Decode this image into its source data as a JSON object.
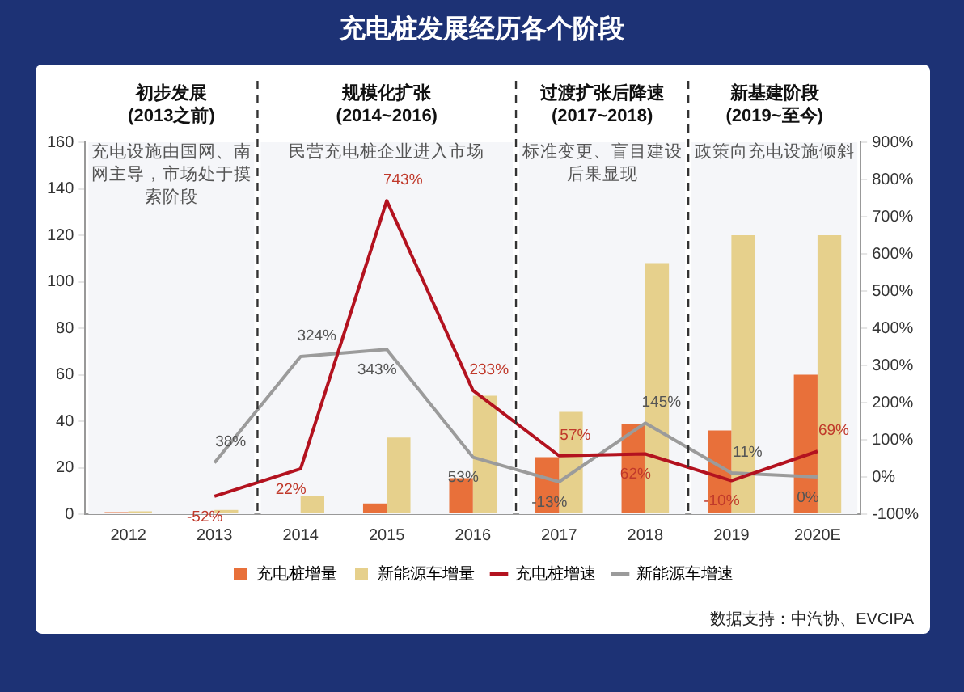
{
  "chart_data": {
    "type": "bar",
    "title": "充电桩发展经历各个阶段",
    "categories": [
      "2012",
      "2013",
      "2014",
      "2015",
      "2016",
      "2017",
      "2018",
      "2019",
      "2020E"
    ],
    "series": [
      {
        "name": "充电桩增量",
        "color": "#e8703a",
        "values": [
          0.9,
          null,
          null,
          4.6,
          15.5,
          24.5,
          39,
          36,
          60
        ]
      },
      {
        "name": "新能源车增量",
        "color": "#e6d08c",
        "values": [
          1.2,
          1.8,
          7.8,
          33,
          51,
          44,
          108,
          120,
          120
        ]
      },
      {
        "name": "充电桩增速",
        "type": "line",
        "axis": "y2",
        "color": "#b3121f",
        "values": [
          null,
          -52,
          22,
          743,
          233,
          57,
          62,
          -10,
          69
        ],
        "value_labels": [
          null,
          "-52%",
          "22%",
          "743%",
          "233%",
          "57%",
          "62%",
          "-10%",
          "69%"
        ]
      },
      {
        "name": "新能源车增速",
        "type": "line",
        "axis": "y2",
        "color": "#9b9b9b",
        "values": [
          null,
          38,
          324,
          343,
          53,
          -13,
          145,
          11,
          0
        ],
        "value_labels": [
          null,
          "38%",
          "324%",
          "343%",
          "53%",
          "-13%",
          "145%",
          "11%",
          "0%"
        ]
      }
    ],
    "ylim": [
      0,
      160
    ],
    "yticks": [
      0,
      20,
      40,
      60,
      80,
      100,
      120,
      140,
      160
    ],
    "y2lim": [
      -100,
      900
    ],
    "y2ticks": [
      {
        "value": -100,
        "label": "-100%"
      },
      {
        "value": 0,
        "label": "0%"
      },
      {
        "value": 100,
        "label": "100%"
      },
      {
        "value": 200,
        "label": "200%"
      },
      {
        "value": 300,
        "label": "300%"
      },
      {
        "value": 400,
        "label": "400%"
      },
      {
        "value": 500,
        "label": "500%"
      },
      {
        "value": 600,
        "label": "600%"
      },
      {
        "value": 700,
        "label": "700%"
      },
      {
        "value": 800,
        "label": "800%"
      },
      {
        "value": 900,
        "label": "900%"
      }
    ],
    "grid": false,
    "legend": "bottom",
    "marker": "none",
    "line_style": "solid",
    "bands": [
      {
        "axis": "x",
        "from": "2012",
        "to": "2013",
        "label": "初步发展\n(2013之前)",
        "color": "#f5f6f9"
      },
      {
        "axis": "x",
        "from": "2014",
        "to": "2016",
        "label": "规模化扩张\n(2014~2016)",
        "color": "#f5f6f9"
      },
      {
        "axis": "x",
        "from": "2017",
        "to": "2018",
        "label": "过渡扩张后降速\n(2017~2018)",
        "color": "#f5f6f9"
      },
      {
        "axis": "x",
        "from": "2019",
        "to": "2020E",
        "label": "新基建阶段\n(2019~至今)",
        "color": "#f5f6f9"
      }
    ],
    "annotations": [
      "充电设施由国网、南网主导，市场处于摸索阶段",
      "民营充电桩企业进入市场",
      "标准变更、盲目建设后果显现",
      "政策向充电设施倾斜",
      "数据支持：中汽协、EVCIPA"
    ]
  }
}
